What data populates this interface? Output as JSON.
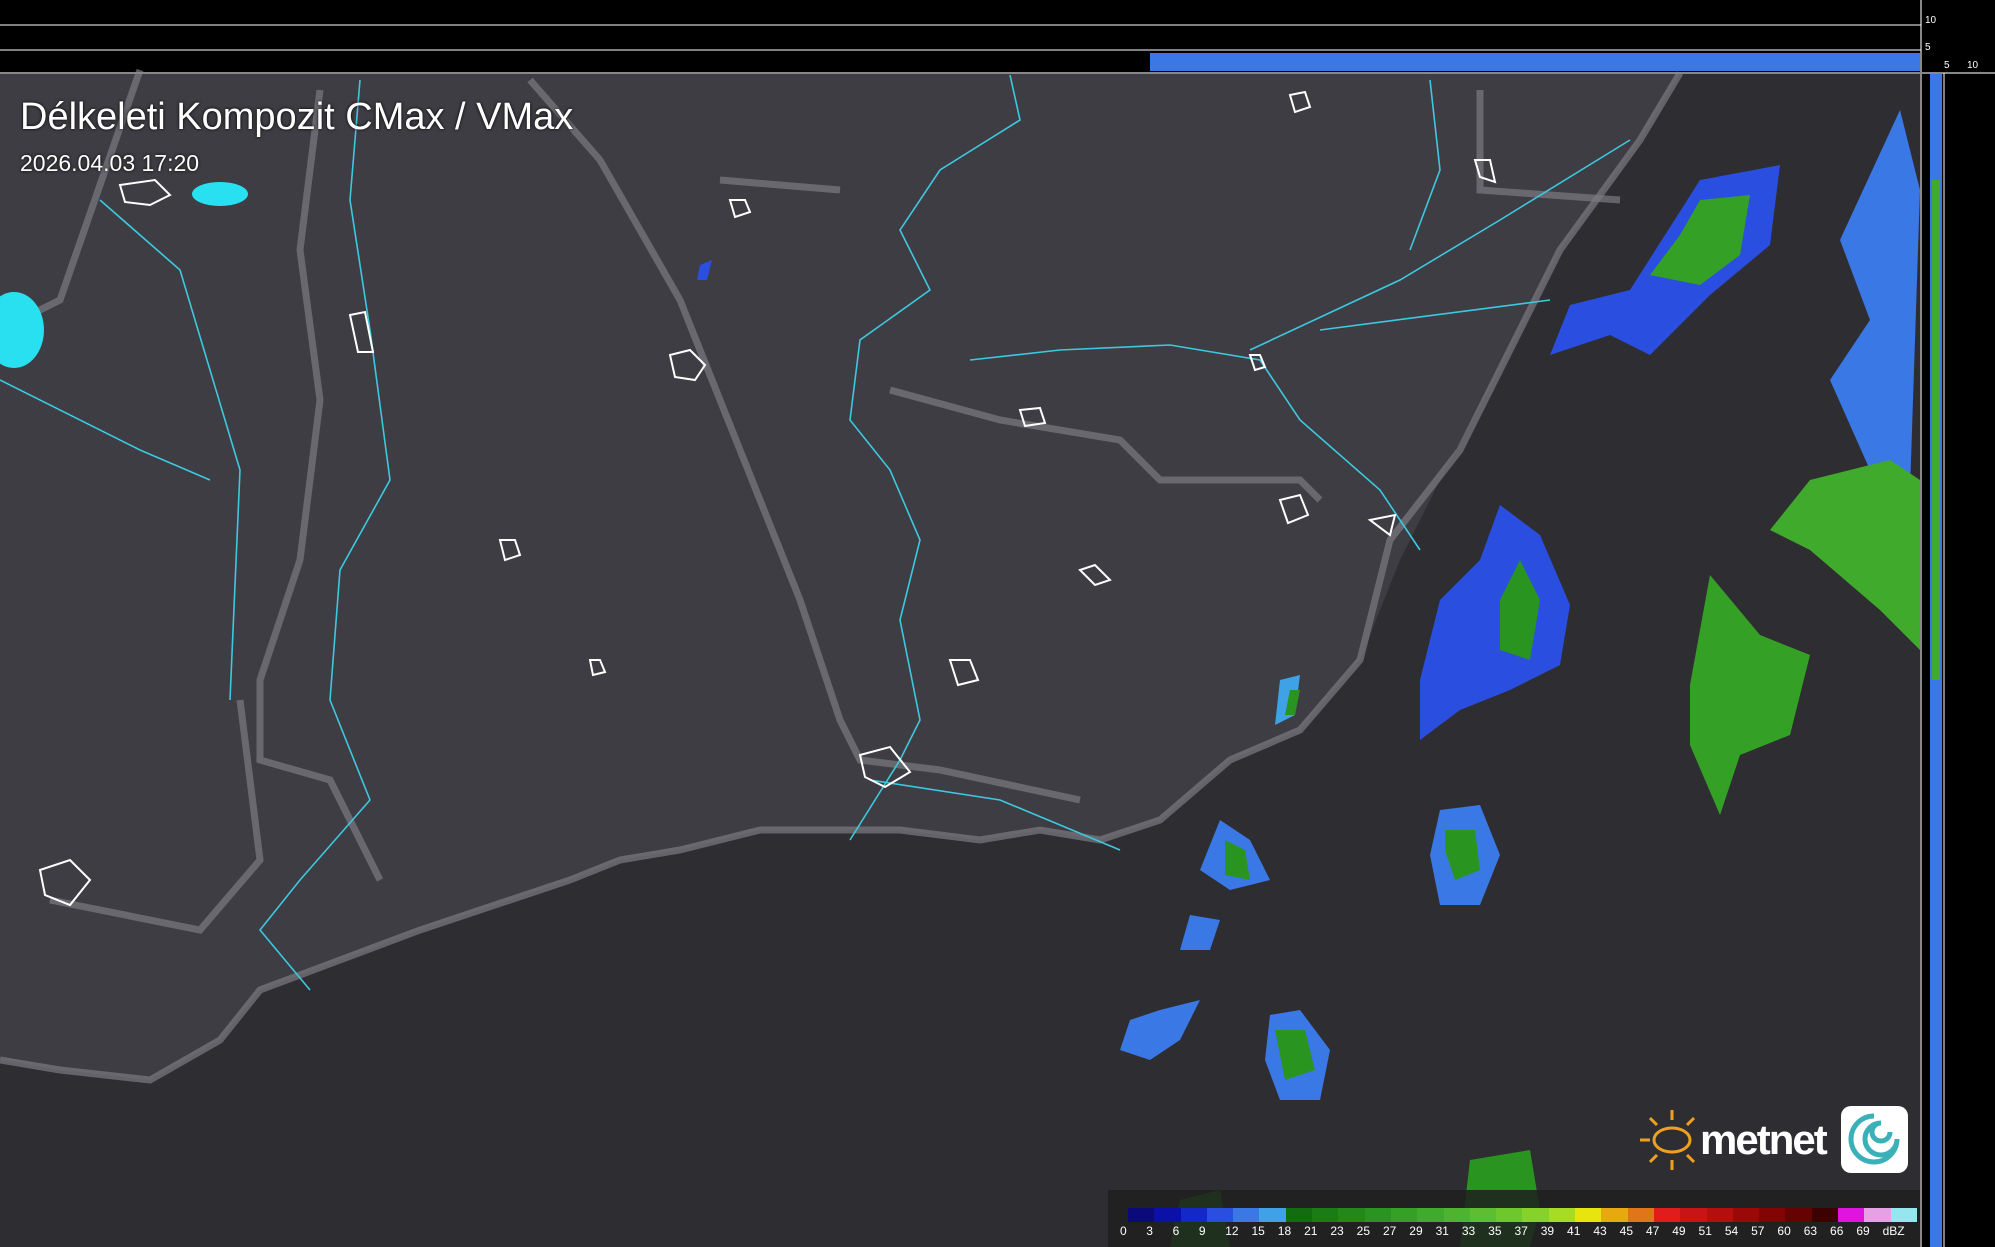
{
  "title": "Délkeleti Kompozit CMax / VMax",
  "timestamp": "2026.04.03 17:20",
  "logo": {
    "text": "metnet"
  },
  "profile_axes": {
    "top_ticks": [
      "10",
      "5"
    ],
    "side_ticks": [
      "5",
      "10"
    ]
  },
  "legend": {
    "unit": "dBZ",
    "labels": [
      "0",
      "3",
      "6",
      "9",
      "12",
      "15",
      "18",
      "21",
      "23",
      "25",
      "27",
      "29",
      "31",
      "33",
      "35",
      "37",
      "39",
      "41",
      "43",
      "45",
      "47",
      "49",
      "51",
      "54",
      "57",
      "60",
      "63",
      "66",
      "69"
    ],
    "colors": [
      "#0a0a7a",
      "#0a10a8",
      "#1428c8",
      "#2a4ee0",
      "#3a78e6",
      "#3fa2e6",
      "#146c10",
      "#1a7c14",
      "#22881a",
      "#2a9420",
      "#34a026",
      "#40aa2c",
      "#4eb430",
      "#5cbe30",
      "#6ec82c",
      "#86d22a",
      "#a6dc24",
      "#e8e40e",
      "#e8a810",
      "#e07618",
      "#e01c1c",
      "#c81414",
      "#b40e0e",
      "#9a0808",
      "#820404",
      "#660202",
      "#3c0202",
      "#e014e0",
      "#e6a0e6",
      "#96e6f0"
    ]
  },
  "colors": {
    "land": "#3d3d43",
    "outside": "#2e2e32",
    "border": "#7a7a80",
    "river": "#3ec8e0",
    "lake": "#28e0f0",
    "outline": "#ffffff",
    "accent": "#f0a020"
  }
}
